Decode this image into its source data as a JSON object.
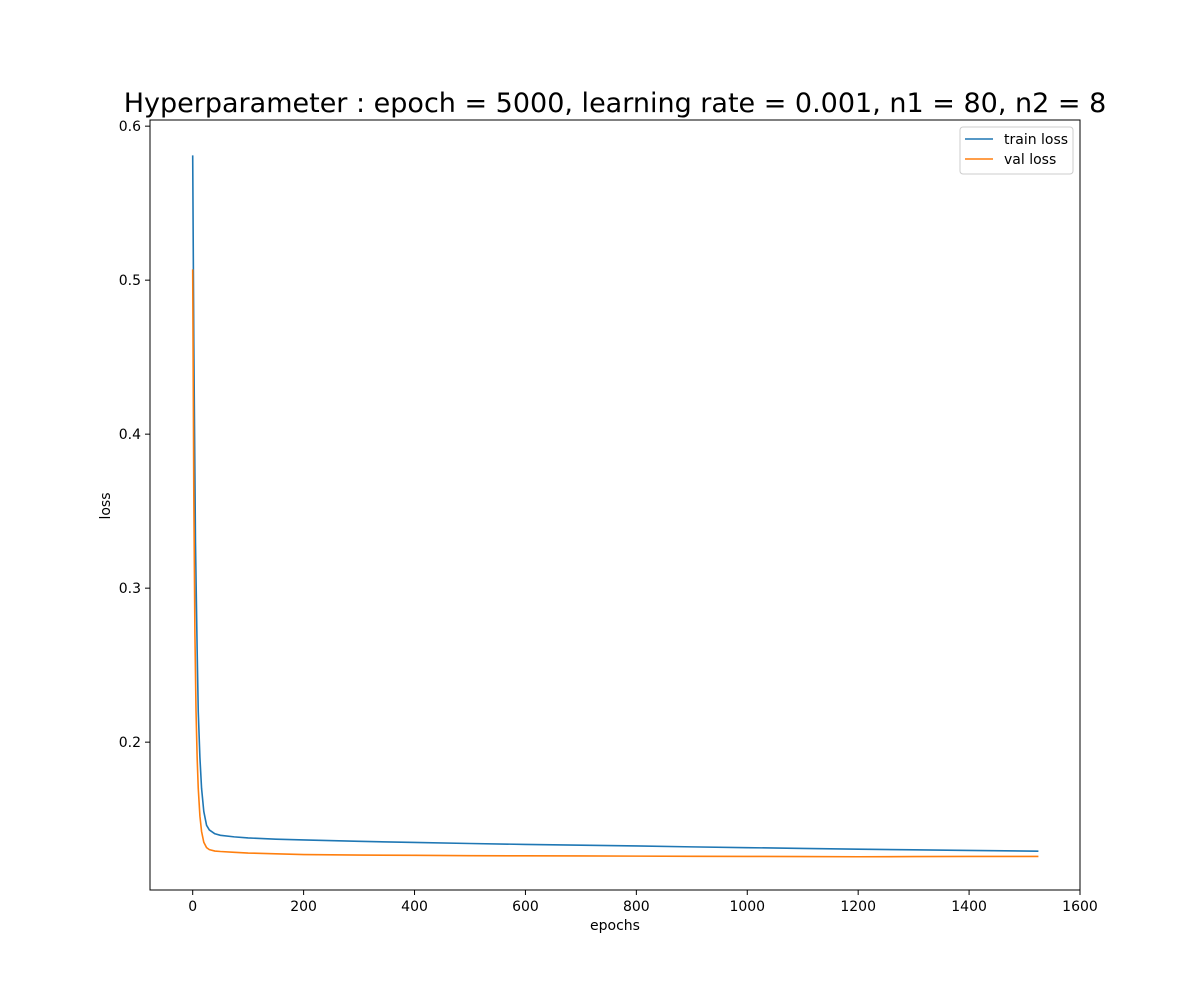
{
  "chart_data": {
    "type": "line",
    "title": "Hyperparameter : epoch = 5000, learning rate = 0.001, n1 = 80, n2 = 8",
    "xlabel": "epochs",
    "ylabel": "loss",
    "xlim": [
      -77,
      1600
    ],
    "ylim": [
      0.104,
      0.604
    ],
    "xticks": [
      0,
      200,
      400,
      600,
      800,
      1000,
      1200,
      1400,
      1600
    ],
    "yticks": [
      0.2,
      0.3,
      0.4,
      0.5,
      0.6
    ],
    "xtick_labels": [
      "0",
      "200",
      "400",
      "600",
      "800",
      "1000",
      "1200",
      "1400",
      "1600"
    ],
    "ytick_labels": [
      "0.2",
      "0.3",
      "0.4",
      "0.5",
      "0.6"
    ],
    "grid": false,
    "legend_position": "upper right",
    "series": [
      {
        "name": "train loss",
        "color": "#1f77b4",
        "x": [
          0,
          2,
          5,
          8,
          10,
          13,
          16,
          20,
          25,
          30,
          40,
          50,
          75,
          100,
          150,
          200,
          300,
          400,
          500,
          600,
          700,
          800,
          900,
          1000,
          1100,
          1200,
          1300,
          1400,
          1525
        ],
        "y": [
          0.581,
          0.46,
          0.33,
          0.26,
          0.22,
          0.19,
          0.17,
          0.155,
          0.146,
          0.143,
          0.1405,
          0.1395,
          0.1385,
          0.1378,
          0.137,
          0.1365,
          0.1356,
          0.1349,
          0.1342,
          0.1336,
          0.1331,
          0.1326,
          0.132,
          0.1315,
          0.131,
          0.1305,
          0.1301,
          0.1297,
          0.1292
        ]
      },
      {
        "name": "val loss",
        "color": "#ff7f0e",
        "x": [
          0,
          2,
          4,
          6,
          8,
          10,
          13,
          16,
          20,
          25,
          30,
          40,
          50,
          75,
          100,
          150,
          200,
          300,
          400,
          500,
          600,
          700,
          800,
          900,
          1000,
          1100,
          1200,
          1300,
          1400,
          1525
        ],
        "y": [
          0.507,
          0.36,
          0.27,
          0.22,
          0.19,
          0.17,
          0.152,
          0.142,
          0.135,
          0.1315,
          0.1302,
          0.1293,
          0.129,
          0.1285,
          0.128,
          0.1275,
          0.127,
          0.1267,
          0.1265,
          0.1263,
          0.1262,
          0.1261,
          0.126,
          0.1259,
          0.1258,
          0.1257,
          0.1256,
          0.1257,
          0.1258,
          0.1258
        ]
      }
    ]
  }
}
